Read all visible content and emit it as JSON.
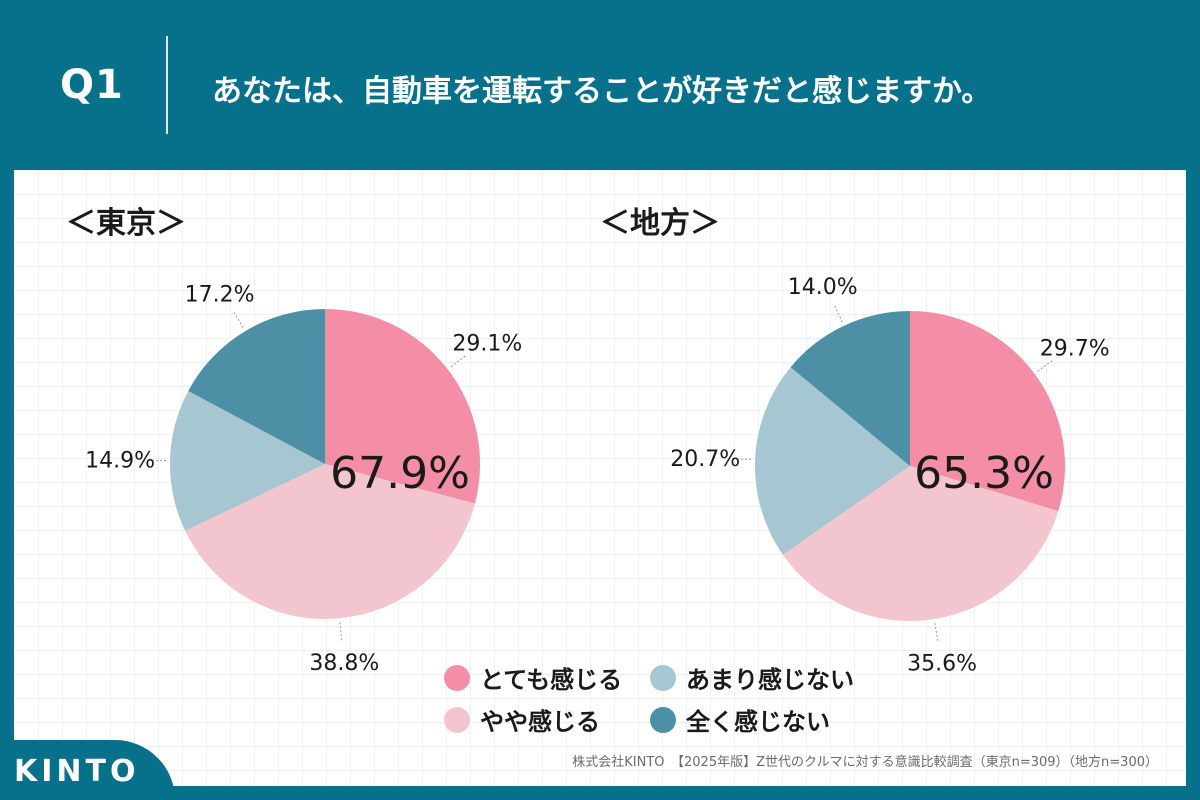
{
  "header": {
    "q_num": "Q1",
    "question": "あなたは、自動車を運転することが好きだと感じますか。"
  },
  "colors": {
    "background": "#07708b",
    "とても感じる": "#f48ea6",
    "やや感じる": "#f3c5ce",
    "あまり感じない": "#a6c6d2",
    "全く感じない": "#4d8fa5"
  },
  "chart_data": [
    {
      "type": "pie",
      "title": "＜東京＞",
      "categories": [
        "とても感じる",
        "やや感じる",
        "あまり感じない",
        "全く感じない"
      ],
      "values": [
        29.1,
        38.8,
        14.9,
        17.2
      ],
      "value_labels": [
        "29.1%",
        "38.8%",
        "14.9%",
        "17.2%"
      ],
      "center_label": "67.9%"
    },
    {
      "type": "pie",
      "title": "＜地方＞",
      "categories": [
        "とても感じる",
        "やや感じる",
        "あまり感じない",
        "全く感じない"
      ],
      "values": [
        29.7,
        35.6,
        20.7,
        14.0
      ],
      "value_labels": [
        "29.7%",
        "35.6%",
        "20.7%",
        "14.0%"
      ],
      "center_label": "65.3%"
    }
  ],
  "legend": [
    {
      "label": "とても感じる",
      "color": "#f48ea6"
    },
    {
      "label": "あまり感じない",
      "color": "#a6c6d2"
    },
    {
      "label": "やや感じる",
      "color": "#f3c5ce"
    },
    {
      "label": "全く感じない",
      "color": "#4d8fa5"
    }
  ],
  "footnote": "株式会社KINTO　【2025年版】Z世代のクルマに対する意識比較調査（東京n=309）（地方n=300）",
  "logo": {
    "text": "KINTO"
  }
}
